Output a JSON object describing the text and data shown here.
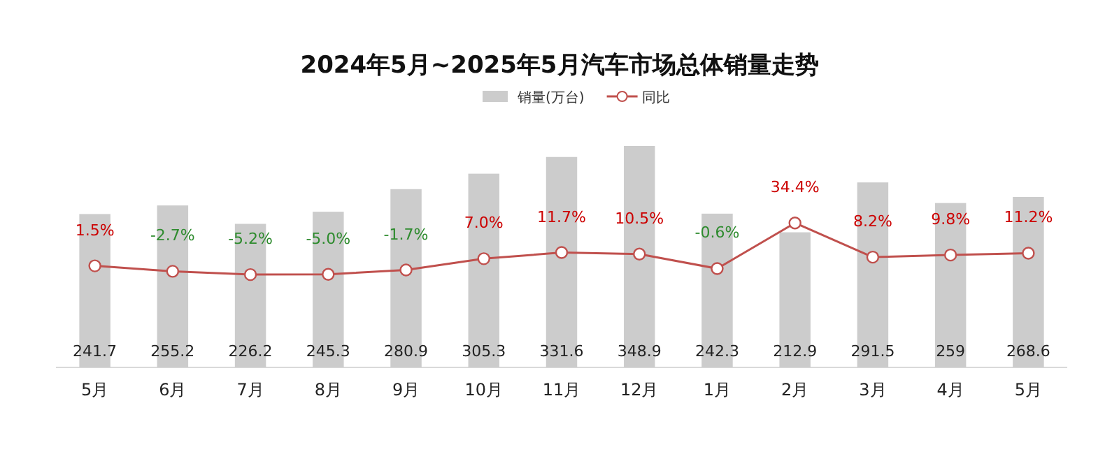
{
  "chart_data": {
    "type": "bar",
    "title": "2024年5月~2025年5月汽车市场总体销量走势",
    "categories": [
      "5月",
      "6月",
      "7月",
      "8月",
      "9月",
      "10月",
      "11月",
      "12月",
      "1月",
      "2月",
      "3月",
      "4月",
      "5月"
    ],
    "series": [
      {
        "name": "销量(万台)",
        "color": "#cccccc",
        "values": [
          241.7,
          255.2,
          226.2,
          245.3,
          280.9,
          305.3,
          331.6,
          348.9,
          242.3,
          212.9,
          291.5,
          259,
          268.6
        ]
      },
      {
        "name": "同比",
        "type": "line",
        "axis": "y2",
        "color": "#c0504d",
        "marker": "circle",
        "values": [
          1.5,
          -2.7,
          -5.2,
          -5.0,
          -1.7,
          7.0,
          11.7,
          10.5,
          -0.6,
          34.4,
          8.2,
          9.8,
          11.2
        ],
        "value_labels": [
          "1.5%",
          "-2.7%",
          "-5.2%",
          "-5.0%",
          "-1.7%",
          "7.0%",
          "11.7%",
          "10.5%",
          "-0.6%",
          "34.4%",
          "8.2%",
          "9.8%",
          "11.2%"
        ]
      }
    ],
    "data_labels": true,
    "legend": "top",
    "tick_labels": "x"
  }
}
